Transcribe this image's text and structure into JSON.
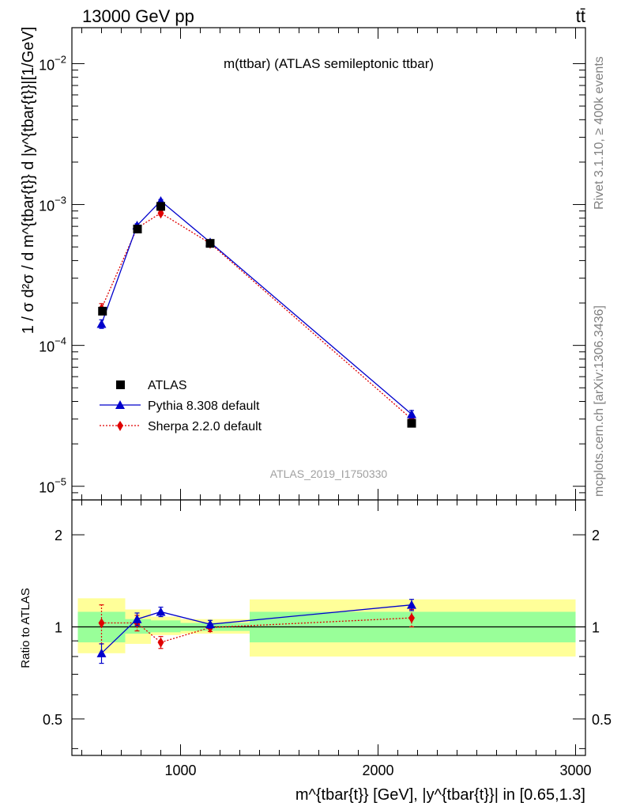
{
  "header": {
    "left": "13000 GeV pp",
    "right": "tt̄"
  },
  "side_text": {
    "rivet": "Rivet 3.1.10, ≥ 400k events",
    "mcplots": "mcplots.cern.ch [arXiv:1306.3436]"
  },
  "chart_data": [
    {
      "type": "line",
      "title": "m(ttbar) (ATLAS semileptonic ttbar)",
      "watermark": "ATLAS_2019_I1750330",
      "ylabel": "1 / σ d²σ / d m^{tbar{t}} d |y^{tbar{t}}|[1/GeV]",
      "ylog": true,
      "xlim": [
        450,
        3050
      ],
      "ylim": [
        8e-06,
        0.018
      ],
      "y_ticks": [
        {
          "v": 1e-05,
          "base": "10",
          "exp": "−5"
        },
        {
          "v": 0.0001,
          "base": "10",
          "exp": "−4"
        },
        {
          "v": 0.001,
          "base": "10",
          "exp": "−3"
        },
        {
          "v": 0.01,
          "base": "10",
          "exp": "−2"
        }
      ],
      "legend": [
        "ATLAS",
        "Pythia 8.308 default",
        "Sherpa 2.2.0 default"
      ],
      "legend_position": "lower-left",
      "colors": {
        "ATLAS": "#000000",
        "Pythia": "#0000cc",
        "Sherpa": "#e00000"
      },
      "bins": [
        [
          480,
          720
        ],
        [
          720,
          850
        ],
        [
          850,
          1000
        ],
        [
          1000,
          1350
        ],
        [
          1350,
          3000
        ]
      ],
      "series": [
        {
          "name": "ATLAS",
          "x": [
            605,
            782,
            900,
            1150,
            2170
          ],
          "values": [
            0.000175,
            0.00067,
            0.00097,
            0.00053,
            2.8e-05
          ],
          "errors": [
            8e-06,
            2.2e-05,
            3e-05,
            1.6e-05,
            1.5e-06
          ]
        },
        {
          "name": "Pythia 8.308 default",
          "x": [
            600,
            780,
            900,
            1150,
            2170
          ],
          "values": [
            0.000142,
            0.00071,
            0.00106,
            0.00054,
            3.25e-05
          ],
          "errors": [
            1e-05,
            2e-05,
            2.5e-05,
            1.2e-05,
            2e-06
          ]
        },
        {
          "name": "Sherpa 2.2.0 default",
          "x": [
            600,
            780,
            900,
            1150,
            2170
          ],
          "values": [
            0.000183,
            0.00068,
            0.00087,
            0.00053,
            3e-05
          ],
          "errors": [
            1.5e-05,
            2.5e-05,
            3e-05,
            1.5e-05,
            2e-06
          ]
        }
      ]
    },
    {
      "type": "line",
      "ylabel": "Ratio to ATLAS",
      "xlabel": "m^{tbar{t}} [GeV], |y^{tbar{t}}| in [0.65,1.3]",
      "ylog": true,
      "xlim": [
        450,
        3050
      ],
      "ylim": [
        0.38,
        2.6
      ],
      "y_ticks": [
        0.5,
        1,
        2
      ],
      "y_tick_labels": [
        "0.5",
        "1",
        "2"
      ],
      "x_ticks": [
        1000,
        2000,
        3000
      ],
      "x_tick_labels": [
        "1000",
        "2000",
        "3000"
      ],
      "bands": [
        {
          "x": [
            480,
            720
          ],
          "stat": [
            0.89,
            1.12
          ],
          "total": [
            0.82,
            1.24
          ]
        },
        {
          "x": [
            720,
            850
          ],
          "stat": [
            0.95,
            1.06
          ],
          "total": [
            0.88,
            1.14
          ]
        },
        {
          "x": [
            850,
            1000
          ],
          "stat": [
            0.96,
            1.05
          ],
          "total": [
            0.94,
            1.08
          ]
        },
        {
          "x": [
            1000,
            1350
          ],
          "stat": [
            0.97,
            1.03
          ],
          "total": [
            0.95,
            1.06
          ]
        },
        {
          "x": [
            1350,
            3000
          ],
          "stat": [
            0.89,
            1.12
          ],
          "total": [
            0.8,
            1.23
          ]
        }
      ],
      "series": [
        {
          "name": "Pythia 8.308 default",
          "x": [
            600,
            780,
            900,
            1150,
            2170
          ],
          "values": [
            0.82,
            1.06,
            1.12,
            1.02,
            1.18
          ],
          "errors": [
            0.06,
            0.05,
            0.04,
            0.03,
            0.05
          ]
        },
        {
          "name": "Sherpa 2.2.0 default",
          "x": [
            600,
            780,
            900,
            1150,
            2170
          ],
          "values": [
            1.03,
            1.03,
            0.89,
            0.995,
            1.07
          ],
          "errors": [
            0.15,
            0.06,
            0.04,
            0.03,
            0.07
          ]
        }
      ]
    }
  ]
}
